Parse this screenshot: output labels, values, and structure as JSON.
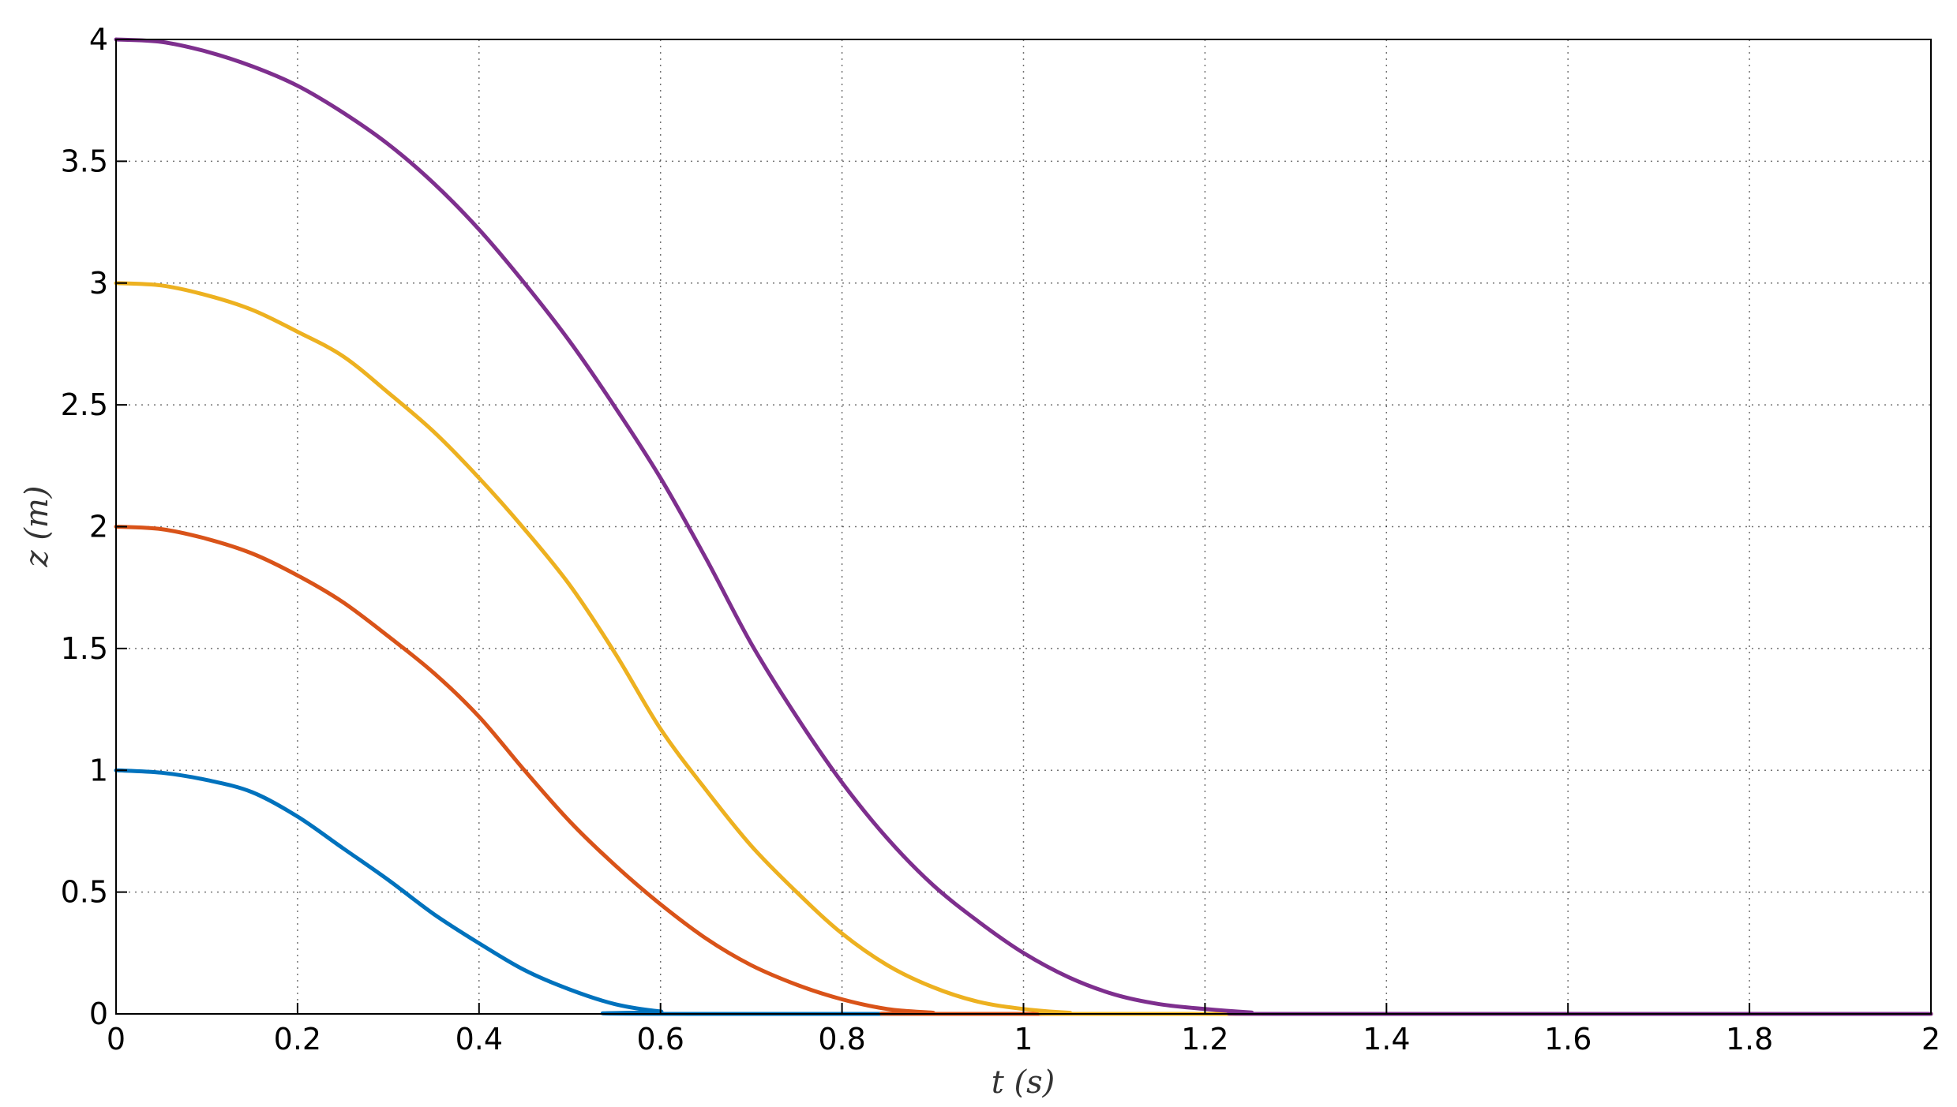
{
  "chart_data": {
    "type": "line",
    "xlabel": "t (s)",
    "ylabel": "z (m)",
    "xlim": [
      0,
      2
    ],
    "ylim": [
      0,
      4
    ],
    "xticks": [
      "0",
      "0.2",
      "0.4",
      "0.6",
      "0.8",
      "1",
      "1.2",
      "1.4",
      "1.6",
      "1.8",
      "2"
    ],
    "yticks": [
      "0",
      "0.5",
      "1",
      "1.5",
      "2",
      "2.5",
      "3",
      "3.5",
      "4"
    ],
    "grid": true,
    "series": [
      {
        "color": "#0072BD",
        "points": [
          [
            0,
            1.0
          ],
          [
            0.05,
            0.99
          ],
          [
            0.1,
            0.96
          ],
          [
            0.15,
            0.91
          ],
          [
            0.2,
            0.81
          ],
          [
            0.25,
            0.68
          ],
          [
            0.3,
            0.55
          ],
          [
            0.35,
            0.41
          ],
          [
            0.4,
            0.29
          ],
          [
            0.45,
            0.18
          ],
          [
            0.5,
            0.1
          ],
          [
            0.55,
            0.04
          ],
          [
            0.6,
            0.01
          ],
          [
            0.65,
            0
          ],
          [
            2,
            0
          ]
        ]
      },
      {
        "color": "#D95319",
        "points": [
          [
            0,
            2.0
          ],
          [
            0.05,
            1.99
          ],
          [
            0.1,
            1.95
          ],
          [
            0.15,
            1.89
          ],
          [
            0.2,
            1.8
          ],
          [
            0.25,
            1.69
          ],
          [
            0.3,
            1.55
          ],
          [
            0.35,
            1.4
          ],
          [
            0.4,
            1.22
          ],
          [
            0.45,
            1.0
          ],
          [
            0.5,
            0.79
          ],
          [
            0.55,
            0.61
          ],
          [
            0.6,
            0.45
          ],
          [
            0.65,
            0.31
          ],
          [
            0.7,
            0.2
          ],
          [
            0.75,
            0.12
          ],
          [
            0.8,
            0.06
          ],
          [
            0.85,
            0.02
          ],
          [
            0.9,
            0.005
          ],
          [
            0.93,
            0
          ],
          [
            2,
            0
          ]
        ]
      },
      {
        "color": "#EDB120",
        "points": [
          [
            0,
            3.0
          ],
          [
            0.05,
            2.99
          ],
          [
            0.1,
            2.95
          ],
          [
            0.15,
            2.89
          ],
          [
            0.2,
            2.8
          ],
          [
            0.25,
            2.7
          ],
          [
            0.3,
            2.55
          ],
          [
            0.35,
            2.39
          ],
          [
            0.4,
            2.2
          ],
          [
            0.45,
            1.99
          ],
          [
            0.5,
            1.76
          ],
          [
            0.55,
            1.48
          ],
          [
            0.6,
            1.17
          ],
          [
            0.65,
            0.92
          ],
          [
            0.7,
            0.69
          ],
          [
            0.75,
            0.5
          ],
          [
            0.8,
            0.33
          ],
          [
            0.85,
            0.2
          ],
          [
            0.9,
            0.11
          ],
          [
            0.95,
            0.05
          ],
          [
            1.0,
            0.02
          ],
          [
            1.05,
            0.005
          ],
          [
            1.1,
            0
          ],
          [
            2,
            0
          ]
        ]
      },
      {
        "color": "#7E2F8E",
        "points": [
          [
            0,
            4.0
          ],
          [
            0.05,
            3.99
          ],
          [
            0.1,
            3.95
          ],
          [
            0.15,
            3.89
          ],
          [
            0.2,
            3.81
          ],
          [
            0.25,
            3.7
          ],
          [
            0.3,
            3.57
          ],
          [
            0.35,
            3.41
          ],
          [
            0.4,
            3.22
          ],
          [
            0.45,
            3.0
          ],
          [
            0.5,
            2.76
          ],
          [
            0.55,
            2.49
          ],
          [
            0.6,
            2.2
          ],
          [
            0.65,
            1.87
          ],
          [
            0.7,
            1.52
          ],
          [
            0.75,
            1.22
          ],
          [
            0.8,
            0.95
          ],
          [
            0.85,
            0.72
          ],
          [
            0.9,
            0.53
          ],
          [
            0.95,
            0.38
          ],
          [
            1.0,
            0.25
          ],
          [
            1.05,
            0.15
          ],
          [
            1.1,
            0.08
          ],
          [
            1.15,
            0.04
          ],
          [
            1.2,
            0.02
          ],
          [
            1.25,
            0.006
          ],
          [
            1.29,
            0
          ],
          [
            2,
            0
          ]
        ]
      }
    ]
  }
}
